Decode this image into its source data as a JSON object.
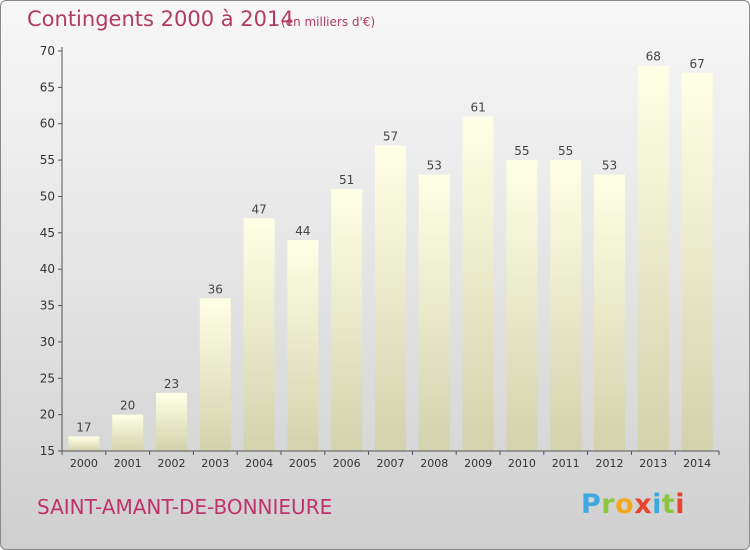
{
  "header": {
    "title": "Contingents 2000 à 2014",
    "unit": "(en milliers d'€)"
  },
  "footer": {
    "place": "SAINT-AMANT-DE-BONNIEURE",
    "logo_letters": [
      "P",
      "r",
      "o",
      "x",
      "i",
      "t",
      "i"
    ]
  },
  "colors": {
    "title": "#b23a64",
    "bar_top": "#ffffe6",
    "bar_bottom": "#d2d2ad",
    "axis": "#555555"
  },
  "chart_data": {
    "type": "bar",
    "title": "Contingents 2000 à 2014",
    "subtitle": "(en milliers d'€)",
    "xlabel": "",
    "ylabel": "",
    "categories": [
      "2000",
      "2001",
      "2002",
      "2003",
      "2004",
      "2005",
      "2006",
      "2007",
      "2008",
      "2009",
      "2010",
      "2011",
      "2012",
      "2013",
      "2014"
    ],
    "values": [
      17,
      20,
      23,
      36,
      47,
      44,
      51,
      57,
      53,
      61,
      55,
      55,
      53,
      68,
      67
    ],
    "ylim": [
      15,
      70
    ],
    "yticks": [
      15,
      20,
      25,
      30,
      35,
      40,
      45,
      50,
      55,
      60,
      65,
      70
    ],
    "grid": false,
    "data_labels": true
  }
}
